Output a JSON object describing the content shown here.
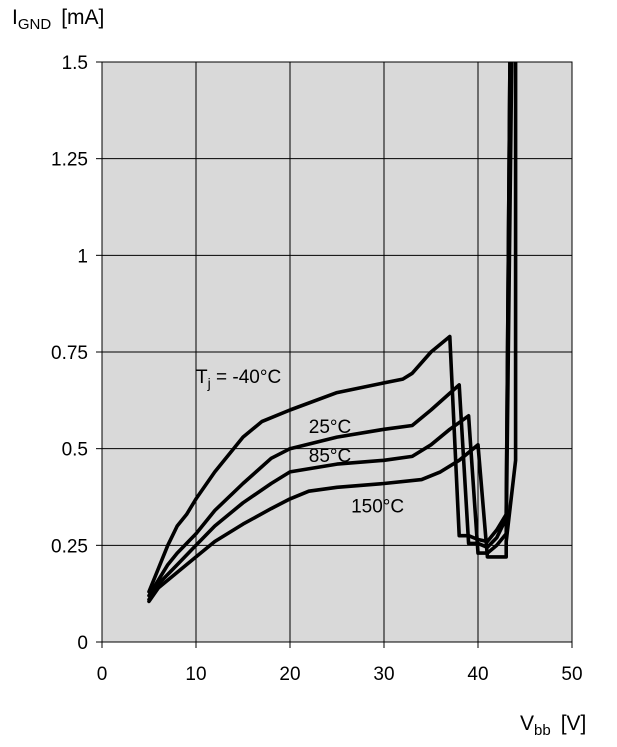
{
  "chart_data": {
    "type": "line",
    "ylabel": {
      "main": "I",
      "sub": "GND",
      "unit": "[mA]"
    },
    "xlabel": {
      "main": "V",
      "sub": "bb",
      "unit": "[V]"
    },
    "xlim": [
      0,
      50
    ],
    "ylim": [
      0,
      1.5
    ],
    "x_ticks": [
      0,
      10,
      20,
      30,
      40,
      50
    ],
    "x_tick_labels": [
      "0",
      "10",
      "20",
      "30",
      "40",
      "50"
    ],
    "y_ticks": [
      0,
      0.25,
      0.5,
      0.75,
      1,
      1.25,
      1.5
    ],
    "y_tick_labels": [
      "0",
      "0.25",
      "0.5",
      "0.75",
      "1",
      "1.25",
      "1.5"
    ],
    "grid": true,
    "background": "#d9d9d9",
    "line_color": "#000000",
    "series": [
      {
        "name": "Tj = -40°C",
        "points": [
          [
            5,
            0.13
          ],
          [
            6,
            0.19
          ],
          [
            7,
            0.25
          ],
          [
            8,
            0.3
          ],
          [
            9,
            0.33
          ],
          [
            10,
            0.37
          ],
          [
            12,
            0.44
          ],
          [
            15,
            0.53
          ],
          [
            17,
            0.57
          ],
          [
            20,
            0.6
          ],
          [
            25,
            0.645
          ],
          [
            30,
            0.67
          ],
          [
            32,
            0.68
          ],
          [
            33,
            0.695
          ],
          [
            35,
            0.75
          ],
          [
            37,
            0.79
          ],
          [
            38,
            0.275
          ],
          [
            39,
            0.275
          ],
          [
            40,
            0.265
          ],
          [
            41,
            0.26
          ],
          [
            42,
            0.29
          ],
          [
            43,
            0.33
          ],
          [
            43.4,
            1.52
          ]
        ]
      },
      {
        "name": "25°C",
        "points": [
          [
            5,
            0.12
          ],
          [
            6,
            0.16
          ],
          [
            7,
            0.2
          ],
          [
            8,
            0.23
          ],
          [
            10,
            0.28
          ],
          [
            12,
            0.34
          ],
          [
            15,
            0.41
          ],
          [
            18,
            0.475
          ],
          [
            20,
            0.5
          ],
          [
            25,
            0.53
          ],
          [
            30,
            0.55
          ],
          [
            33,
            0.56
          ],
          [
            35,
            0.6
          ],
          [
            38,
            0.665
          ],
          [
            39,
            0.255
          ],
          [
            40,
            0.255
          ],
          [
            41,
            0.245
          ],
          [
            42,
            0.27
          ],
          [
            43,
            0.32
          ],
          [
            43.4,
            1.52
          ]
        ]
      },
      {
        "name": "85°C",
        "points": [
          [
            5,
            0.11
          ],
          [
            6,
            0.15
          ],
          [
            8,
            0.2
          ],
          [
            10,
            0.25
          ],
          [
            12,
            0.3
          ],
          [
            15,
            0.36
          ],
          [
            18,
            0.41
          ],
          [
            20,
            0.44
          ],
          [
            25,
            0.46
          ],
          [
            30,
            0.47
          ],
          [
            33,
            0.48
          ],
          [
            35,
            0.51
          ],
          [
            37,
            0.55
          ],
          [
            39,
            0.585
          ],
          [
            40,
            0.23
          ],
          [
            41,
            0.23
          ],
          [
            42,
            0.25
          ],
          [
            43,
            0.28
          ],
          [
            43.6,
            1.52
          ]
        ]
      },
      {
        "name": "150°C",
        "points": [
          [
            5,
            0.105
          ],
          [
            6,
            0.14
          ],
          [
            8,
            0.18
          ],
          [
            10,
            0.22
          ],
          [
            12,
            0.26
          ],
          [
            15,
            0.305
          ],
          [
            18,
            0.345
          ],
          [
            20,
            0.37
          ],
          [
            22,
            0.39
          ],
          [
            25,
            0.4
          ],
          [
            30,
            0.41
          ],
          [
            34,
            0.42
          ],
          [
            36,
            0.44
          ],
          [
            38,
            0.47
          ],
          [
            40,
            0.51
          ],
          [
            41,
            0.22
          ],
          [
            42,
            0.22
          ],
          [
            43,
            0.22
          ],
          [
            43,
            0.26
          ],
          [
            44,
            0.47
          ],
          [
            44,
            1.52
          ]
        ]
      }
    ],
    "annotations": [
      {
        "id": "tj",
        "main": "T",
        "sub": "j",
        "rest": " = -40°C",
        "x": 10,
        "y": 0.67
      },
      {
        "id": "t25",
        "text": "25°C",
        "x": 22,
        "y": 0.54
      },
      {
        "id": "t85",
        "text": "85°C",
        "x": 22,
        "y": 0.465
      },
      {
        "id": "t150",
        "text": "150°C",
        "x": 26.5,
        "y": 0.335
      }
    ]
  }
}
